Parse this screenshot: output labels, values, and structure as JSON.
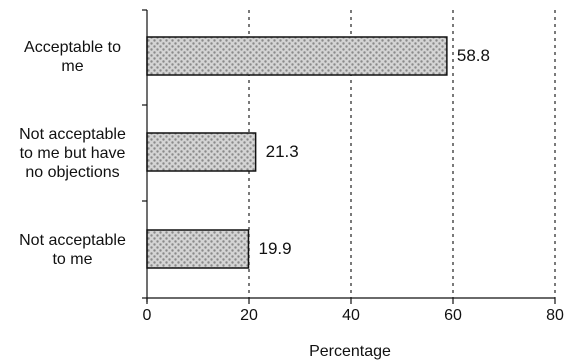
{
  "chart_data": {
    "type": "bar",
    "orientation": "horizontal",
    "title": "",
    "xlabel": "Percentage",
    "ylabel": "",
    "categories": [
      "Acceptable to me",
      "Not acceptable to me but have no objections",
      "Not acceptable to me"
    ],
    "category_lines": [
      [
        "Acceptable to",
        "me"
      ],
      [
        "Not acceptable",
        "to me but have",
        "no objections"
      ],
      [
        "Not acceptable",
        "to me"
      ]
    ],
    "values": [
      58.8,
      21.3,
      19.9
    ],
    "value_labels": [
      "58.8",
      "21.3",
      "19.9"
    ],
    "xlim": [
      0,
      80
    ],
    "xticks": [
      "0",
      "20",
      "40",
      "60",
      "80"
    ],
    "grid": "vertical-dotted",
    "bar_fill": "#bdbdbd",
    "bar_outline": "#111111"
  }
}
